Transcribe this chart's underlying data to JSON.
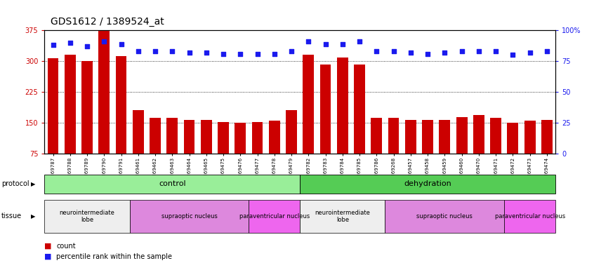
{
  "title": "GDS1612 / 1389524_at",
  "samples": [
    "GSM69787",
    "GSM69788",
    "GSM69789",
    "GSM69790",
    "GSM69791",
    "GSM69461",
    "GSM69462",
    "GSM69463",
    "GSM69464",
    "GSM69465",
    "GSM69475",
    "GSM69476",
    "GSM69477",
    "GSM69478",
    "GSM69479",
    "GSM69782",
    "GSM69783",
    "GSM69784",
    "GSM69785",
    "GSM69786",
    "GSM69268",
    "GSM69457",
    "GSM69458",
    "GSM69459",
    "GSM69460",
    "GSM69470",
    "GSM69471",
    "GSM69472",
    "GSM69473",
    "GSM69474"
  ],
  "counts": [
    307,
    316,
    300,
    373,
    312,
    181,
    162,
    162,
    158,
    158,
    152,
    150,
    153,
    155,
    181,
    315,
    292,
    308,
    292,
    162,
    163,
    157,
    157,
    157,
    165,
    170,
    163,
    150,
    155,
    157
  ],
  "percentile_ranks": [
    88,
    90,
    87,
    91,
    89,
    83,
    83,
    83,
    82,
    82,
    81,
    81,
    81,
    81,
    83,
    91,
    89,
    89,
    91,
    83,
    83,
    82,
    81,
    82,
    83,
    83,
    83,
    80,
    82,
    83
  ],
  "ymin": 75,
  "ymax": 375,
  "yticks_left": [
    75,
    150,
    225,
    300,
    375
  ],
  "yticks_right": [
    0,
    25,
    50,
    75,
    100
  ],
  "bar_color": "#cc0000",
  "dot_color": "#1a1aee",
  "title_fontsize": 10,
  "protocol_groups": [
    {
      "label": "control",
      "start": 0,
      "end": 14,
      "color": "#99ee99"
    },
    {
      "label": "dehydration",
      "start": 15,
      "end": 29,
      "color": "#55cc55"
    }
  ],
  "tissue_groups": [
    {
      "label": "neurointermediate\nlobe",
      "start": 0,
      "end": 4,
      "color": "#eeeeee"
    },
    {
      "label": "supraoptic nucleus",
      "start": 5,
      "end": 11,
      "color": "#dd88dd"
    },
    {
      "label": "paraventricular nucleus",
      "start": 12,
      "end": 14,
      "color": "#ee66ee"
    },
    {
      "label": "neurointermediate\nlobe",
      "start": 15,
      "end": 19,
      "color": "#eeeeee"
    },
    {
      "label": "supraoptic nucleus",
      "start": 20,
      "end": 26,
      "color": "#dd88dd"
    },
    {
      "label": "paraventricular nucleus",
      "start": 27,
      "end": 29,
      "color": "#ee66ee"
    }
  ],
  "background_color": "#ffffff"
}
